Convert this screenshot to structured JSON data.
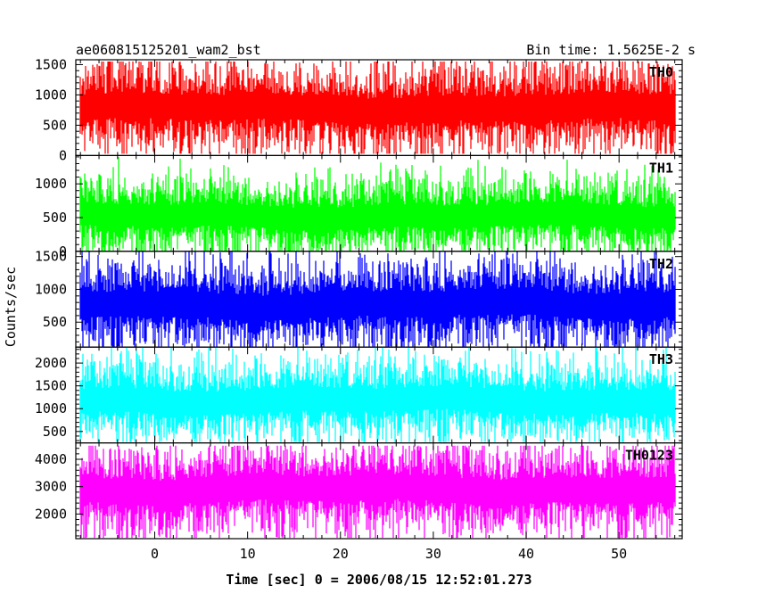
{
  "header": {
    "left": "ae060815125201_wam2_bst",
    "right": "Bin time: 1.5625E-2 s"
  },
  "axes": {
    "ylabel": "Counts/sec",
    "xlabel": "Time [sec] 0 = 2006/08/15 12:52:01.273",
    "xlim": [
      -8.5,
      56.8
    ],
    "x_ticks": [
      0,
      10,
      20,
      30,
      40,
      50
    ],
    "x_minor_step": 2
  },
  "chart_data": [
    {
      "type": "line",
      "panel": 1,
      "series_label": "TH0",
      "color": "#ff0000",
      "ylim": [
        0,
        1580
      ],
      "y_ticks": [
        0,
        500,
        1000,
        1500
      ],
      "x_range": [
        -8.0,
        56.0
      ],
      "baseline_mean": 780,
      "typical_min": 200,
      "typical_max": 1350,
      "observed_peak": 1550,
      "observed_low": 30
    },
    {
      "type": "line",
      "panel": 2,
      "series_label": "TH1",
      "color": "#00ff00",
      "ylim": [
        0,
        1420
      ],
      "y_ticks": [
        0,
        500,
        1000
      ],
      "x_range": [
        -8.0,
        56.0
      ],
      "baseline_mean": 520,
      "typical_min": 100,
      "typical_max": 1000,
      "observed_peak": 1420,
      "observed_low": 10
    },
    {
      "type": "line",
      "panel": 3,
      "series_label": "TH2",
      "color": "#0000ff",
      "ylim": [
        120,
        1580
      ],
      "y_ticks": [
        500,
        1000,
        1500
      ],
      "x_range": [
        -8.0,
        56.0
      ],
      "baseline_mean": 770,
      "typical_min": 250,
      "typical_max": 1300,
      "observed_peak": 1580,
      "observed_low": 130
    },
    {
      "type": "line",
      "panel": 4,
      "series_label": "TH3",
      "color": "#00ffff",
      "ylim": [
        250,
        2350
      ],
      "y_ticks": [
        500,
        1000,
        1500,
        2000
      ],
      "x_range": [
        -8.0,
        56.0
      ],
      "baseline_mean": 1180,
      "typical_min": 500,
      "typical_max": 1900,
      "observed_peak": 2350,
      "observed_low": 270
    },
    {
      "type": "line",
      "panel": 5,
      "series_label": "TH0123",
      "color": "#ff00ff",
      "ylim": [
        1100,
        4600
      ],
      "y_ticks": [
        2000,
        3000,
        4000
      ],
      "x_range": [
        -8.0,
        56.0
      ],
      "baseline_mean": 2900,
      "typical_min": 1650,
      "typical_max": 4150,
      "observed_peak": 4500,
      "observed_low": 1130
    }
  ]
}
